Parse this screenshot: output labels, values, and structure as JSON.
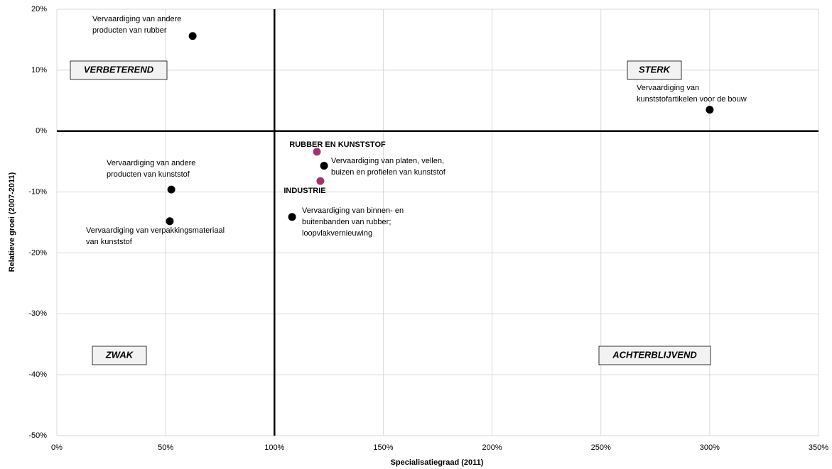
{
  "chart_data": {
    "type": "scatter",
    "x_label": "Specialisatiegraad (2011)",
    "y_label": "Relatieve groei (2007-2011)",
    "xlim": [
      0,
      350
    ],
    "ylim": [
      -50,
      20
    ],
    "xticks": [
      {
        "value": 0,
        "label": "0%"
      },
      {
        "value": 50,
        "label": "50%"
      },
      {
        "value": 100,
        "label": "100%"
      },
      {
        "value": 150,
        "label": "150%"
      },
      {
        "value": 200,
        "label": "200%"
      },
      {
        "value": 250,
        "label": "250%"
      },
      {
        "value": 300,
        "label": "300%"
      },
      {
        "value": 350,
        "label": "350%"
      }
    ],
    "yticks": [
      {
        "value": -50,
        "label": "-50%"
      },
      {
        "value": -40,
        "label": "-40%"
      },
      {
        "value": -30,
        "label": "-30%"
      },
      {
        "value": -20,
        "label": "-20%"
      },
      {
        "value": -10,
        "label": "-10%"
      },
      {
        "value": 0,
        "label": "0%"
      },
      {
        "value": 10,
        "label": "10%"
      },
      {
        "value": 20,
        "label": "20%"
      }
    ],
    "grid": true,
    "reference_lines": {
      "x": 100,
      "y": 0
    },
    "quadrant_labels": [
      "VERBETEREND",
      "STERK",
      "ZWAK",
      "ACHTERBLIJVEND"
    ],
    "points": [
      {
        "label": [
          "Vervaardiging van andere",
          "producten van rubber"
        ],
        "x": 62.4,
        "y": 15.6,
        "color": "#000000"
      },
      {
        "label": [
          "Vervaardiging van",
          "kunststofartikelen voor de bouw"
        ],
        "x": 300,
        "y": 3.5,
        "color": "#000000"
      },
      {
        "label": [
          "Vervaardiging van platen, vellen,",
          "buizen en profielen van kunststof"
        ],
        "x": 122.8,
        "y": -5.7,
        "color": "#000000"
      },
      {
        "label": [
          "Vervaardiging van andere",
          "producten van kunststof"
        ],
        "x": 52.6,
        "y": -9.6,
        "color": "#000000"
      },
      {
        "label": [
          "Vervaardiging van verpakkingsmateriaal",
          "van kunststof"
        ],
        "x": 51.9,
        "y": -14.8,
        "color": "#000000"
      },
      {
        "label": [
          "Vervaardiging van binnen- en",
          "buitenbanden van rubber;",
          "loopvlakvernieuwing"
        ],
        "x": 108.1,
        "y": -14.1,
        "color": "#000000"
      },
      {
        "label": [
          "RUBBER EN KUNSTSTOF"
        ],
        "x": 119.5,
        "y": -3.4,
        "color": "#a0356e"
      },
      {
        "label": [
          "INDUSTRIE"
        ],
        "x": 121.1,
        "y": -8.2,
        "color": "#a0356e"
      }
    ]
  }
}
